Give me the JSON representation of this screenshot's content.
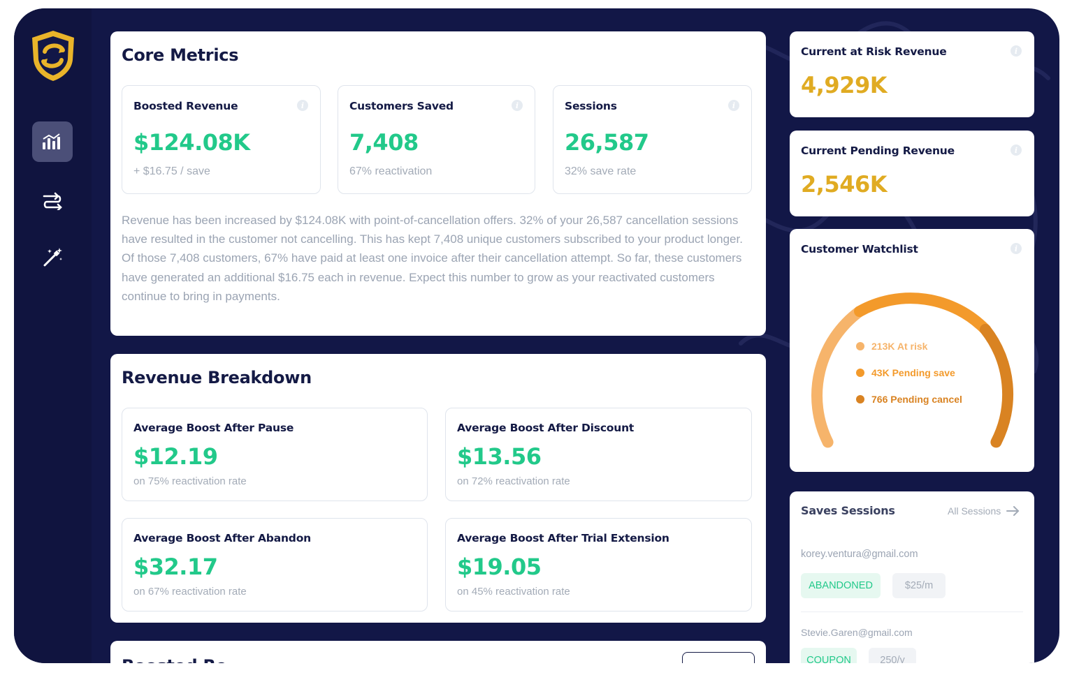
{
  "colors": {
    "frame_bg": "#121747",
    "accent_green": "#22c98a",
    "accent_yellow": "#e0ab22",
    "at_risk": "#f6b46b",
    "pending_save": "#f39a2b",
    "pending_cancel": "#d98322"
  },
  "sidebar": {
    "items": [
      {
        "icon": "bar-chart-icon",
        "active": true
      },
      {
        "icon": "flow-arrows-icon",
        "active": false
      },
      {
        "icon": "magic-wand-icon",
        "active": false
      }
    ]
  },
  "core_metrics": {
    "title": "Core Metrics",
    "cards": [
      {
        "label": "Boosted Revenue",
        "value": "$124.08K",
        "sub": "+ $16.75 / save"
      },
      {
        "label": "Customers Saved",
        "value": "7,408",
        "sub": "67% reactivation"
      },
      {
        "label": "Sessions",
        "value": "26,587",
        "sub": "32% save rate"
      }
    ],
    "description": "Revenue has been increased by $124.08K with point-of-cancellation offers. 32% of your 26,587 cancellation sessions have resulted in the customer not cancelling. This has kept 7,408 unique customers subscribed to your product longer. Of those 7,408 customers, 67% have paid at least one invoice after their cancellation attempt. So far, these customers have generated an additional $16.75 each in revenue. Expect this number to grow as your reactivated customers continue to bring in payments."
  },
  "revenue_breakdown": {
    "title": "Revenue Breakdown",
    "cards": [
      {
        "label": "Average Boost After Pause",
        "value": "$12.19",
        "sub": "on 75% reactivation rate"
      },
      {
        "label": "Average Boost After Discount",
        "value": "$13.56",
        "sub": "on 72% reactivation rate"
      },
      {
        "label": "Average Boost After Abandon",
        "value": "$32.17",
        "sub": "on 67% reactivation rate"
      },
      {
        "label": "Average Boost After Trial Extension",
        "value": "$19.05",
        "sub": "on 45% reactivation rate"
      }
    ]
  },
  "partial_card": {
    "title": "Boosted Re"
  },
  "at_risk": {
    "title": "Current at Risk Revenue",
    "value": "4,929K"
  },
  "pending": {
    "title": "Current Pending Revenue",
    "value": "2,546K"
  },
  "watchlist": {
    "title": "Customer Watchlist",
    "legend": [
      {
        "label": "213K At risk",
        "color": "#f6b46b"
      },
      {
        "label": "43K Pending save",
        "color": "#f39a2b"
      },
      {
        "label": "766 Pending cancel",
        "color": "#d98322"
      }
    ]
  },
  "saves_sessions": {
    "title": "Saves Sessions",
    "link": "All Sessions",
    "rows": [
      {
        "email": "korey.ventura@gmail.com",
        "status": "ABANDONED",
        "price": "$25/m"
      },
      {
        "email": "Stevie.Garen@gmail.com",
        "status": "COUPON",
        "price": "250/y"
      }
    ]
  }
}
